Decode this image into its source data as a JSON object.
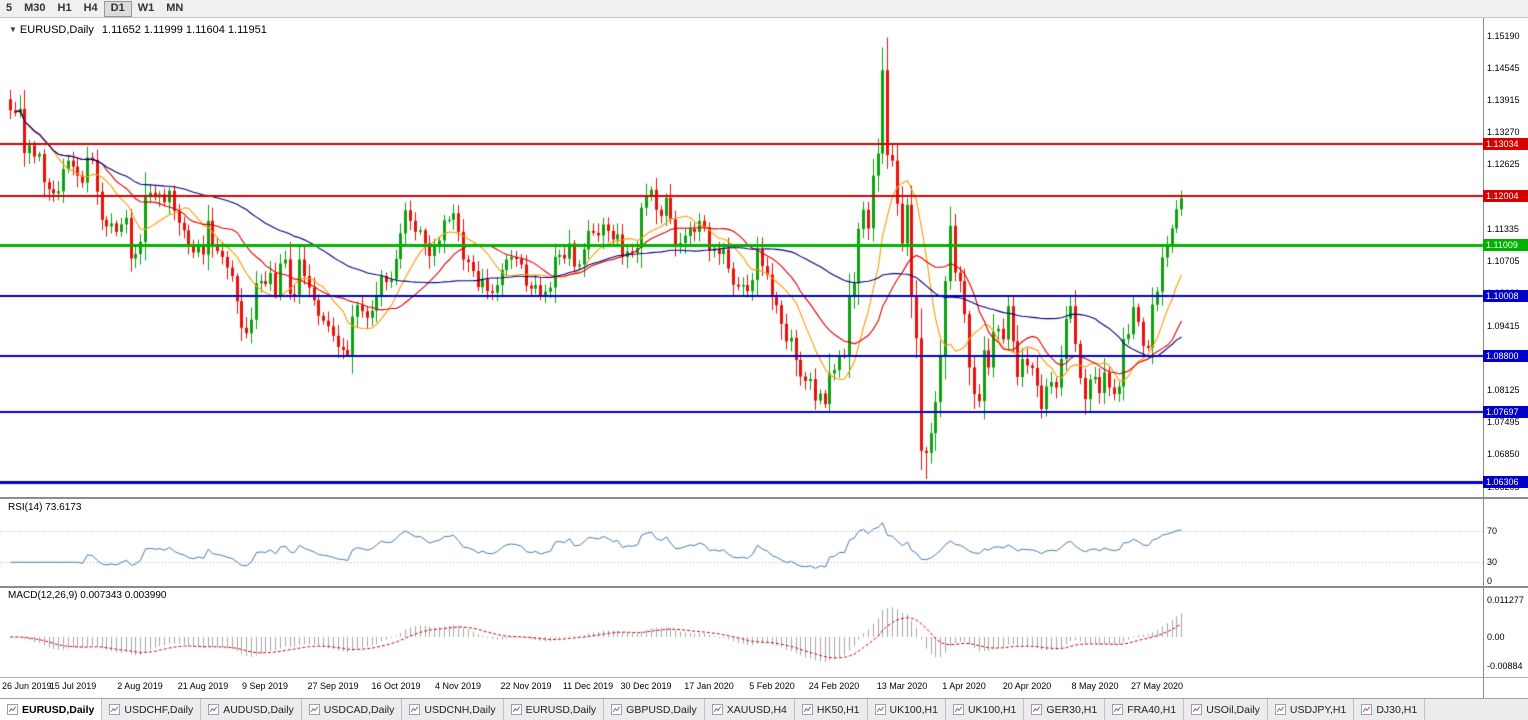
{
  "toolbar": {
    "timeframes": [
      {
        "label": "5",
        "active": false
      },
      {
        "label": "M30",
        "active": false
      },
      {
        "label": "H1",
        "active": false
      },
      {
        "label": "H4",
        "active": false
      },
      {
        "label": "D1",
        "active": true
      },
      {
        "label": "W1",
        "active": false
      },
      {
        "label": "MN",
        "active": false
      }
    ]
  },
  "chart": {
    "symbol": "EURUSD,Daily",
    "ohlc": "1.11652 1.11999 1.11604 1.11951",
    "price_ticks": [
      "1.15190",
      "1.14545",
      "1.13915",
      "1.13270",
      "1.12625",
      "1.11980",
      "1.11335",
      "1.10705",
      "1.10060",
      "1.09415",
      "1.08785",
      "1.08125",
      "1.07495",
      "1.06850",
      "1.06205"
    ],
    "hlines": [
      {
        "price": 1.13034,
        "label": "1.13034",
        "color": "#d60000",
        "width": 2
      },
      {
        "price": 1.12004,
        "label": "1.12004",
        "color": "#d60000",
        "width": 2
      },
      {
        "price": 1.11009,
        "label": "1.11009",
        "color": "#00b200",
        "width": 3
      },
      {
        "price": 1.10008,
        "label": "1.10008",
        "color": "#0000c8",
        "width": 2
      },
      {
        "price": 1.088,
        "label": "1.08800",
        "color": "#0000c8",
        "width": 2
      },
      {
        "price": 1.07697,
        "label": "1.07697",
        "color": "#0000c8",
        "width": 2
      },
      {
        "price": 1.06306,
        "label": "1.06306",
        "color": "#0000c8",
        "width": 3
      }
    ]
  },
  "rsi": {
    "label": "RSI(14) 73.6173",
    "ticks": [
      "70",
      "30",
      "0"
    ],
    "levels": [
      70,
      30
    ]
  },
  "macd": {
    "label": "MACD(12,26,9) 0.007343 0.003990",
    "ticks": [
      "0.011277",
      "0.00",
      "-0.00884"
    ]
  },
  "date_axis": [
    {
      "i": 0,
      "label": "26 Jun 2019"
    },
    {
      "i": 13,
      "label": "15 Jul 2019"
    },
    {
      "i": 27,
      "label": "2 Aug 2019"
    },
    {
      "i": 40,
      "label": "21 Aug 2019"
    },
    {
      "i": 53,
      "label": "9 Sep 2019"
    },
    {
      "i": 67,
      "label": "27 Sep 2019"
    },
    {
      "i": 80,
      "label": "16 Oct 2019"
    },
    {
      "i": 93,
      "label": "4 Nov 2019"
    },
    {
      "i": 107,
      "label": "22 Nov 2019"
    },
    {
      "i": 120,
      "label": "11 Dec 2019"
    },
    {
      "i": 132,
      "label": "30 Dec 2019"
    },
    {
      "i": 145,
      "label": "17 Jan 2020"
    },
    {
      "i": 158,
      "label": "5 Feb 2020"
    },
    {
      "i": 171,
      "label": "24 Feb 2020"
    },
    {
      "i": 185,
      "label": "13 Mar 2020"
    },
    {
      "i": 198,
      "label": "1 Apr 2020"
    },
    {
      "i": 211,
      "label": "20 Apr 2020"
    },
    {
      "i": 225,
      "label": "8 May 2020"
    },
    {
      "i": 238,
      "label": "27 May 2020"
    }
  ],
  "tabs": [
    {
      "label": "EURUSD,Daily",
      "active": true
    },
    {
      "label": "USDCHF,Daily",
      "active": false
    },
    {
      "label": "AUDUSD,Daily",
      "active": false
    },
    {
      "label": "USDCAD,Daily",
      "active": false
    },
    {
      "label": "USDCNH,Daily",
      "active": false
    },
    {
      "label": "EURUSD,Daily",
      "active": false
    },
    {
      "label": "GBPUSD,Daily",
      "active": false
    },
    {
      "label": "XAUUSD,H4",
      "active": false
    },
    {
      "label": "HK50,H1",
      "active": false
    },
    {
      "label": "UK100,H1",
      "active": false
    },
    {
      "label": "UK100,H1",
      "active": false
    },
    {
      "label": "GER30,H1",
      "active": false
    },
    {
      "label": "FRA40,H1",
      "active": false
    },
    {
      "label": "USOil,Daily",
      "active": false
    },
    {
      "label": "USDJPY,H1",
      "active": false
    },
    {
      "label": "DJ30,H1",
      "active": false
    }
  ],
  "chart_data": {
    "type": "candlestick",
    "title": "EURUSD,Daily",
    "x_range": "26 Jun 2019 - 3 Jun 2020",
    "price_axis": {
      "min": 1.06,
      "max": 1.155
    },
    "rsi_axis": {
      "min": 0,
      "max": 110
    },
    "macd_axis": {
      "min": -0.0119,
      "max": 0.0149
    },
    "first_open": 1.1392,
    "closes": [
      1.137,
      1.1365,
      1.1373,
      1.1285,
      1.13,
      1.1278,
      1.1283,
      1.1227,
      1.1213,
      1.1205,
      1.1209,
      1.1253,
      1.127,
      1.1258,
      1.124,
      1.1226,
      1.1276,
      1.1271,
      1.1208,
      1.1152,
      1.1139,
      1.1145,
      1.1128,
      1.1143,
      1.1156,
      1.1075,
      1.1084,
      1.1108,
      1.1201,
      1.1206,
      1.1197,
      1.1203,
      1.1187,
      1.121,
      1.117,
      1.1146,
      1.1131,
      1.11,
      1.1087,
      1.1098,
      1.1083,
      1.115,
      1.11,
      1.109,
      1.1078,
      1.1057,
      1.104,
      1.099,
      1.0937,
      1.0926,
      1.0953,
      1.1026,
      1.103,
      1.1024,
      1.1046,
      1.1002,
      1.1065,
      1.1073,
      1.1004,
      1.1003,
      1.1073,
      1.104,
      1.1017,
      1.0992,
      1.0961,
      1.0951,
      1.094,
      1.0921,
      1.0899,
      1.0893,
      1.0879,
      1.0959,
      1.0982,
      1.097,
      1.0957,
      1.0971,
      1.1002,
      1.104,
      1.1028,
      1.1033,
      1.1074,
      1.1125,
      1.1171,
      1.115,
      1.1128,
      1.1131,
      1.1105,
      1.108,
      1.1099,
      1.1111,
      1.1151,
      1.1152,
      1.1165,
      1.1128,
      1.1073,
      1.1068,
      1.105,
      1.1018,
      1.1034,
      1.101,
      1.1007,
      1.1022,
      1.1052,
      1.1073,
      1.1078,
      1.1074,
      1.1063,
      1.1021,
      1.1015,
      1.1022,
      1.1001,
      1.1009,
      1.1017,
      1.1078,
      1.1082,
      1.1075,
      1.1105,
      1.1059,
      1.1063,
      1.1093,
      1.113,
      1.1126,
      1.1121,
      1.1143,
      1.113,
      1.1113,
      1.1123,
      1.1078,
      1.1089,
      1.1086,
      1.1096,
      1.1176,
      1.1199,
      1.1212,
      1.1172,
      1.116,
      1.1196,
      1.1153,
      1.1103,
      1.1106,
      1.112,
      1.1134,
      1.1128,
      1.115,
      1.1137,
      1.109,
      1.1095,
      1.1084,
      1.1093,
      1.1055,
      1.1023,
      1.1019,
      1.1022,
      1.101,
      1.1032,
      1.1093,
      1.106,
      1.1043,
      1.0998,
      1.0982,
      1.0945,
      1.091,
      1.0917,
      1.0873,
      1.084,
      1.0831,
      1.0835,
      1.0792,
      1.0806,
      1.0785,
      1.0846,
      1.0853,
      1.0881,
      1.088,
      1.0998,
      1.1026,
      1.1134,
      1.1172,
      1.1135,
      1.124,
      1.1284,
      1.145,
      1.1281,
      1.127,
      1.1184,
      1.1105,
      1.1182,
      1.0999,
      1.0916,
      1.0692,
      1.0688,
      1.0727,
      1.0789,
      1.088,
      1.103,
      1.114,
      1.1047,
      1.103,
      1.0964,
      1.0858,
      1.0805,
      1.0791,
      1.0892,
      1.0858,
      1.093,
      1.0935,
      1.0914,
      1.098,
      1.091,
      1.0839,
      1.0875,
      1.0862,
      1.0857,
      1.0822,
      1.0775,
      1.082,
      1.0829,
      1.0818,
      1.0875,
      1.0955,
      1.098,
      1.0905,
      1.0837,
      1.0795,
      1.0834,
      1.0839,
      1.0807,
      1.0848,
      1.0818,
      1.0805,
      1.082,
      1.0915,
      1.0924,
      1.0978,
      1.0949,
      1.0901,
      1.0897,
      1.0983,
      1.1009,
      1.1077,
      1.1101,
      1.1135,
      1.1173,
      1.1195
    ],
    "wick_specials": [
      {
        "i": 2,
        "high": 1.14
      },
      {
        "i": 70,
        "low": 1.0879
      },
      {
        "i": 169,
        "low": 1.07772
      },
      {
        "i": 181,
        "high": 1.14952
      },
      {
        "i": 189,
        "low": 1.0654
      },
      {
        "i": 190,
        "low": 1.06359
      }
    ],
    "indicators": {
      "sma_fast": 10,
      "sma_mid": 20,
      "sma_slow": 50,
      "rsi_period": 14,
      "rsi_last": 73.6173,
      "macd_params": [
        12,
        26,
        9
      ],
      "macd_last": 0.007343,
      "macd_signal_last": 0.00399
    },
    "colors": {
      "up": "#0fa00f",
      "down": "#e81008",
      "sma_fast": "#ff9900",
      "sma_mid": "#e00000",
      "sma_slow": "#000080",
      "rsi": "#4878a8",
      "rsi_level": "#b4b4b4",
      "macd_hist": "#a6a6a6",
      "macd_signal": "#d00000"
    }
  }
}
